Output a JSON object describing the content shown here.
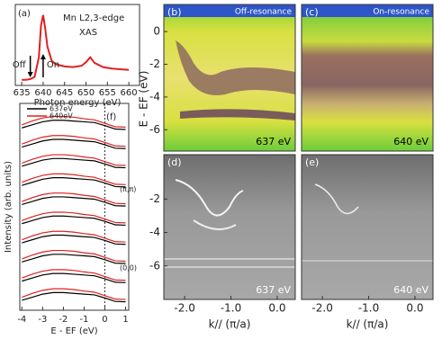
{
  "chart_data": [
    {
      "type": "line",
      "label": "(a)",
      "title": "Mn L2,3-edge",
      "subtitle": "XAS",
      "x_label": "Photon energy (eV)",
      "color": "#e02020",
      "x": [
        635,
        636,
        637,
        638,
        639,
        639.5,
        640,
        640.5,
        641,
        642,
        643,
        645,
        647,
        649,
        650,
        651,
        652,
        654,
        656,
        658,
        660
      ],
      "values": [
        0.08,
        0.08,
        0.09,
        0.12,
        0.4,
        0.85,
        1.0,
        0.8,
        0.55,
        0.35,
        0.3,
        0.27,
        0.26,
        0.28,
        0.33,
        0.4,
        0.32,
        0.26,
        0.24,
        0.23,
        0.22
      ],
      "xlim": [
        633.5,
        662.5
      ],
      "ylim": [
        0,
        1.15
      ],
      "xticks": [
        635,
        640,
        645,
        650,
        655,
        660
      ],
      "annotations": [
        {
          "text": "Off",
          "x": 637
        },
        {
          "text": "On",
          "x": 640
        }
      ]
    },
    {
      "type": "stacked-lines",
      "label": "(f)",
      "x_label": "E - EF (eV)",
      "y_label": "Intensity (arb. units)",
      "x": [
        -4,
        -3.5,
        -3,
        -2.5,
        -2,
        -1.5,
        -1,
        -0.5,
        0,
        0.5,
        1
      ],
      "xlim": [
        -4.1,
        1.15
      ],
      "ylim": [
        0,
        27
      ],
      "xticks": [
        -4,
        -3,
        -2,
        -1,
        0,
        1
      ],
      "vline_x": 0,
      "annotations": [
        {
          "text": "(π,π)",
          "y": 15.8
        },
        {
          "text": "(0,0)",
          "y": 5.5
        }
      ],
      "series": [
        {
          "name": "637eV",
          "color": "#000000",
          "curves": [
            [
              1.3,
              1.7,
              2.1,
              2.3,
              2.3,
              2.2,
              2.1,
              2.0,
              1.6,
              1.15,
              1.1
            ],
            [
              3.8,
              4.2,
              4.6,
              4.8,
              4.8,
              4.7,
              4.6,
              4.5,
              4.1,
              3.65,
              3.6
            ],
            [
              6.3,
              6.7,
              7.1,
              7.3,
              7.3,
              7.2,
              7.1,
              7.0,
              6.6,
              6.15,
              6.1
            ],
            [
              8.8,
              9.2,
              9.6,
              9.8,
              9.8,
              9.7,
              9.6,
              9.5,
              9.1,
              8.65,
              8.6
            ],
            [
              11.3,
              11.7,
              12.1,
              12.3,
              12.3,
              12.2,
              12.1,
              12.0,
              11.6,
              11.15,
              11.1
            ],
            [
              13.8,
              14.2,
              14.6,
              14.8,
              14.8,
              14.7,
              14.6,
              14.5,
              14.1,
              13.65,
              13.6
            ],
            [
              16.3,
              16.7,
              17.1,
              17.3,
              17.3,
              17.2,
              17.1,
              17.0,
              16.6,
              16.15,
              16.1
            ],
            [
              18.8,
              19.2,
              19.6,
              19.8,
              19.8,
              19.7,
              19.6,
              19.5,
              19.1,
              18.65,
              18.6
            ],
            [
              21.3,
              21.7,
              22.1,
              22.3,
              22.3,
              22.2,
              22.1,
              22.0,
              21.6,
              21.15,
              21.1
            ],
            [
              23.8,
              24.2,
              24.6,
              24.8,
              24.8,
              24.7,
              24.6,
              24.5,
              24.1,
              23.65,
              23.6
            ]
          ]
        },
        {
          "name": "640eV",
          "color": "#e02020",
          "curves": [
            [
              1.7,
              2.2,
              2.6,
              2.8,
              2.8,
              2.7,
              2.5,
              2.35,
              1.9,
              1.45,
              1.4
            ],
            [
              4.2,
              4.7,
              5.1,
              5.3,
              5.3,
              5.2,
              5.0,
              4.85,
              4.4,
              3.95,
              3.9
            ],
            [
              6.7,
              7.2,
              7.6,
              7.8,
              7.8,
              7.7,
              7.5,
              7.35,
              6.9,
              6.45,
              6.4
            ],
            [
              9.2,
              9.7,
              10.1,
              10.3,
              10.3,
              10.2,
              10.0,
              9.85,
              9.4,
              8.95,
              8.9
            ],
            [
              11.7,
              12.2,
              12.6,
              12.8,
              12.8,
              12.7,
              12.5,
              12.35,
              11.9,
              11.45,
              11.4
            ],
            [
              14.2,
              14.7,
              15.1,
              15.3,
              15.3,
              15.2,
              15.0,
              14.85,
              14.4,
              13.95,
              13.9
            ],
            [
              16.7,
              17.2,
              17.6,
              17.8,
              17.8,
              17.7,
              17.5,
              17.35,
              16.9,
              16.45,
              16.4
            ],
            [
              19.2,
              19.7,
              20.1,
              20.3,
              20.3,
              20.2,
              20.0,
              19.85,
              19.4,
              18.95,
              18.9
            ],
            [
              21.7,
              22.2,
              22.6,
              22.8,
              22.8,
              22.7,
              22.5,
              22.35,
              21.9,
              21.45,
              21.4
            ],
            [
              24.2,
              24.7,
              25.1,
              25.3,
              25.3,
              25.2,
              25.0,
              24.85,
              24.4,
              23.95,
              23.9
            ]
          ]
        }
      ]
    }
  ],
  "arpes": {
    "y_label": "E - EF (eV)",
    "x_label": "k// (π/a)",
    "xlim": [
      -2.45,
      0.39
    ],
    "xticks": [
      {
        "value": -2,
        "label": "-2.0"
      },
      {
        "value": -1,
        "label": "-1.0"
      },
      {
        "value": 0,
        "label": "0.0"
      }
    ],
    "panels": [
      {
        "label": "(b)",
        "tag": "Off-resonance",
        "energy": "637 eV",
        "ylim": [
          -7.3,
          1.65
        ],
        "yticks": [
          0,
          -2,
          -4,
          -6
        ]
      },
      {
        "label": "(c)",
        "tag": "On-resonance",
        "energy": "640 eV",
        "ylim": [
          -7.3,
          1.65
        ]
      },
      {
        "label": "(d)",
        "energy": "637 eV",
        "ylim": [
          -8.0,
          0.65
        ],
        "yticks": [
          -2,
          -4,
          -6
        ]
      },
      {
        "label": "(e)",
        "energy": "640 eV",
        "ylim": [
          -8.0,
          0.65
        ]
      }
    ]
  }
}
